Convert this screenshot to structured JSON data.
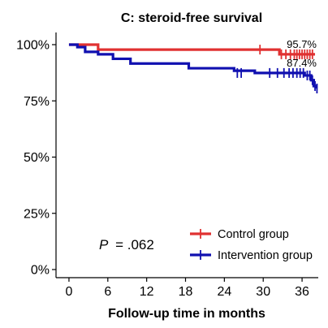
{
  "chart_data": {
    "type": "line",
    "subtype": "kaplan-meier",
    "title": "C: steroid-free survival",
    "xlabel": "Follow-up time in months",
    "ylabel": "",
    "xlim": [
      -2,
      38.5
    ],
    "ylim": [
      0,
      100
    ],
    "x_ticks": [
      "0",
      "6",
      "12",
      "18",
      "24",
      "30",
      "36"
    ],
    "y_ticks": [
      "0%",
      "25%",
      "50%",
      "75%",
      "100%"
    ],
    "grid": false,
    "legend_position": "bottom-right",
    "annotation": {
      "p_label": "P",
      "p_value": "= .062"
    },
    "series": [
      {
        "name": "Control group",
        "color": "#e03131",
        "end_label": "95.7%",
        "steps": [
          [
            0,
            100
          ],
          [
            4.5,
            97.8
          ],
          [
            32.5,
            95.7
          ],
          [
            38,
            95.7
          ]
        ],
        "censors": [
          [
            29.5,
            97.8
          ],
          [
            32.8,
            95.7
          ],
          [
            33.5,
            95.7
          ],
          [
            34.2,
            95.7
          ],
          [
            34.8,
            95.7
          ],
          [
            35.2,
            95.7
          ],
          [
            35.6,
            95.7
          ],
          [
            36.0,
            95.7
          ],
          [
            36.4,
            95.7
          ],
          [
            36.8,
            95.7
          ],
          [
            37.2,
            95.7
          ],
          [
            37.6,
            95.7
          ]
        ]
      },
      {
        "name": "Intervention group",
        "color": "#1010b0",
        "end_label": "87.4%",
        "steps": [
          [
            0,
            100
          ],
          [
            1.3,
            98.9
          ],
          [
            2.5,
            96.8
          ],
          [
            4.5,
            95.7
          ],
          [
            6.8,
            93.7
          ],
          [
            9.5,
            91.6
          ],
          [
            18.5,
            89.5
          ],
          [
            25.5,
            88.4
          ],
          [
            28.7,
            87.4
          ],
          [
            36.4,
            86.3
          ],
          [
            37.4,
            84.2
          ],
          [
            37.8,
            81.6
          ],
          [
            38.2,
            80.5
          ]
        ],
        "censors": [
          [
            26.0,
            87.4
          ],
          [
            26.6,
            87.4
          ],
          [
            31.0,
            87.4
          ],
          [
            32.2,
            87.4
          ],
          [
            33.2,
            87.4
          ],
          [
            34.0,
            87.4
          ],
          [
            34.6,
            87.4
          ],
          [
            35.2,
            87.4
          ],
          [
            35.7,
            87.4
          ],
          [
            36.2,
            87.4
          ],
          [
            36.8,
            86.3
          ],
          [
            37.2,
            86.3
          ],
          [
            37.6,
            84.2
          ],
          [
            38.0,
            81.6
          ],
          [
            38.3,
            80.5
          ]
        ]
      }
    ]
  }
}
